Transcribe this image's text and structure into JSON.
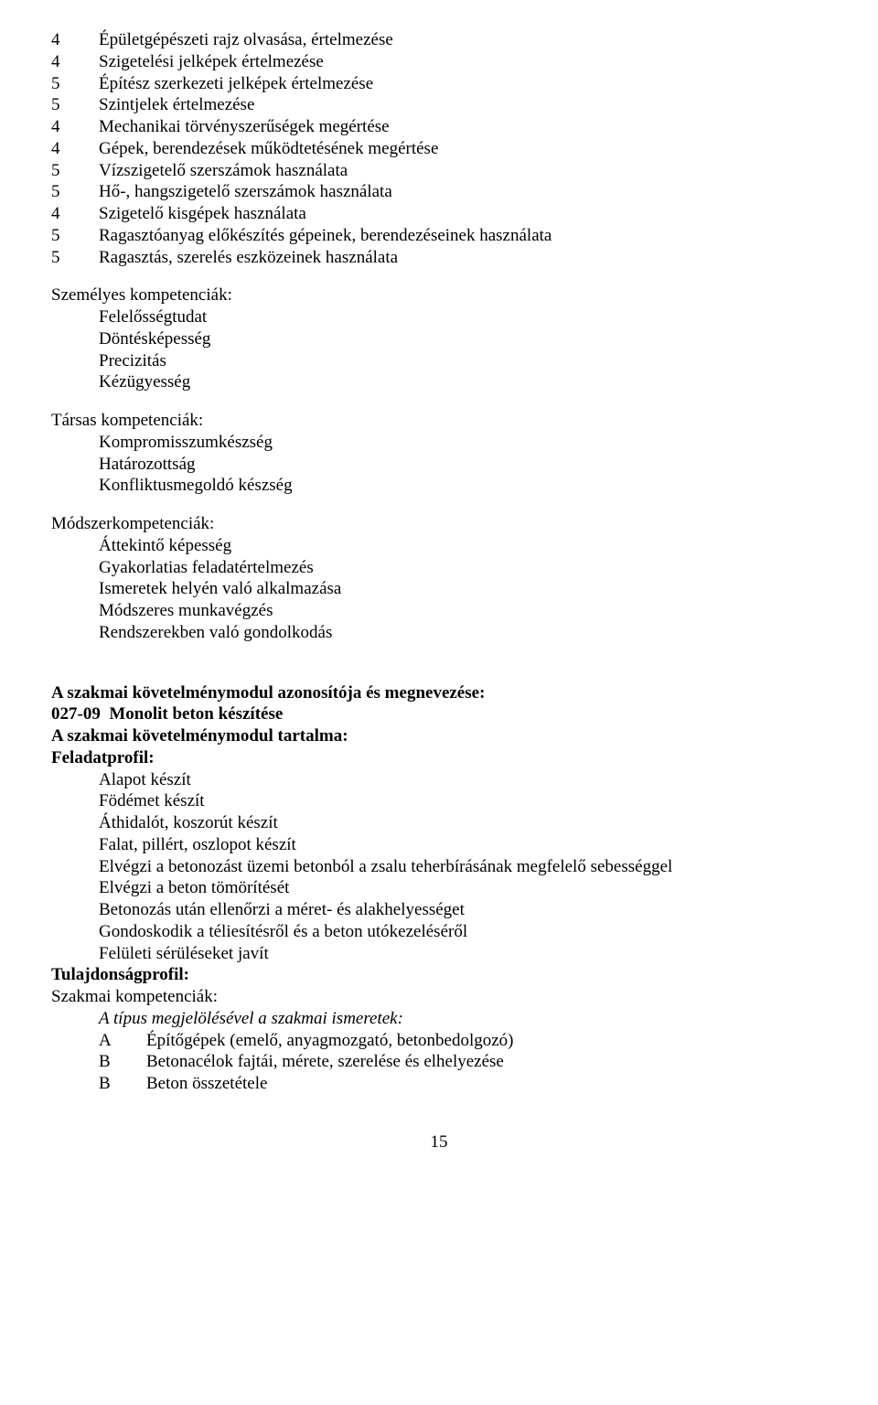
{
  "topList": [
    {
      "n": "4",
      "t": "Épületgépészeti rajz olvasása, értelmezése"
    },
    {
      "n": "4",
      "t": "Szigetelési jelképek értelmezése"
    },
    {
      "n": "5",
      "t": "Építész szerkezeti jelképek értelmezése"
    },
    {
      "n": "5",
      "t": "Szintjelek értelmezése"
    },
    {
      "n": "4",
      "t": "Mechanikai törvényszerűségek megértése"
    },
    {
      "n": "4",
      "t": "Gépek, berendezések működtetésének megértése"
    },
    {
      "n": "5",
      "t": "Vízszigetelő szerszámok használata"
    },
    {
      "n": "5",
      "t": "Hő-, hangszigetelő szerszámok használata"
    },
    {
      "n": "4",
      "t": "Szigetelő kisgépek használata"
    },
    {
      "n": "5",
      "t": "Ragasztóanyag előkészítés gépeinek, berendezéseinek használata"
    },
    {
      "n": "5",
      "t": "Ragasztás, szerelés eszközeinek használata"
    }
  ],
  "personal": {
    "title": "Személyes kompetenciák:",
    "items": [
      "Felelősségtudat",
      "Döntésképesség",
      "Precizitás",
      "Kézügyesség"
    ]
  },
  "social": {
    "title": "Társas kompetenciák:",
    "items": [
      "Kompromisszumkészség",
      "Határozottság",
      "Konfliktusmegoldó készség"
    ]
  },
  "method": {
    "title": "Módszerkompetenciák:",
    "items": [
      "Áttekintő képesség",
      "Gyakorlatias feladatértelmezés",
      "Ismeretek helyén való alkalmazása",
      "Módszeres munkavégzés",
      "Rendszerekben való gondolkodás"
    ]
  },
  "module": {
    "line1": "A szakmai követelménymodul azonosítója és megnevezése:",
    "line2a": "027-09",
    "line2b": "Monolit beton készítése",
    "line3": "A szakmai követelménymodul tartalma:",
    "feladatprofil": "Feladatprofil:",
    "tasks": [
      "Alapot készít",
      "Födémet készít",
      "Áthidalót, koszorút készít",
      "Falat, pillért, oszlopot készít",
      "Elvégzi a betonozást üzemi betonból a zsalu teherbírásának megfelelő sebességgel",
      "Elvégzi a beton tömörítését",
      "Betonozás után ellenőrzi a méret- és alakhelyességet",
      "Gondoskodik a téliesítésről és a beton utókezeléséről",
      "Felületi sérüléseket javít"
    ],
    "tulajdonsag": "Tulajdonságprofil:",
    "szakmai": "Szakmai kompetenciák:",
    "tipus": "A típus megjelölésével a szakmai ismeretek:",
    "letters": [
      {
        "l": "A",
        "t": "Építőgépek (emelő, anyagmozgató, betonbedolgozó)"
      },
      {
        "l": "B",
        "t": "Betonacélok fajtái, mérete, szerelése és elhelyezése"
      },
      {
        "l": "B",
        "t": "Beton összetétele"
      }
    ]
  },
  "pageNumber": "15"
}
